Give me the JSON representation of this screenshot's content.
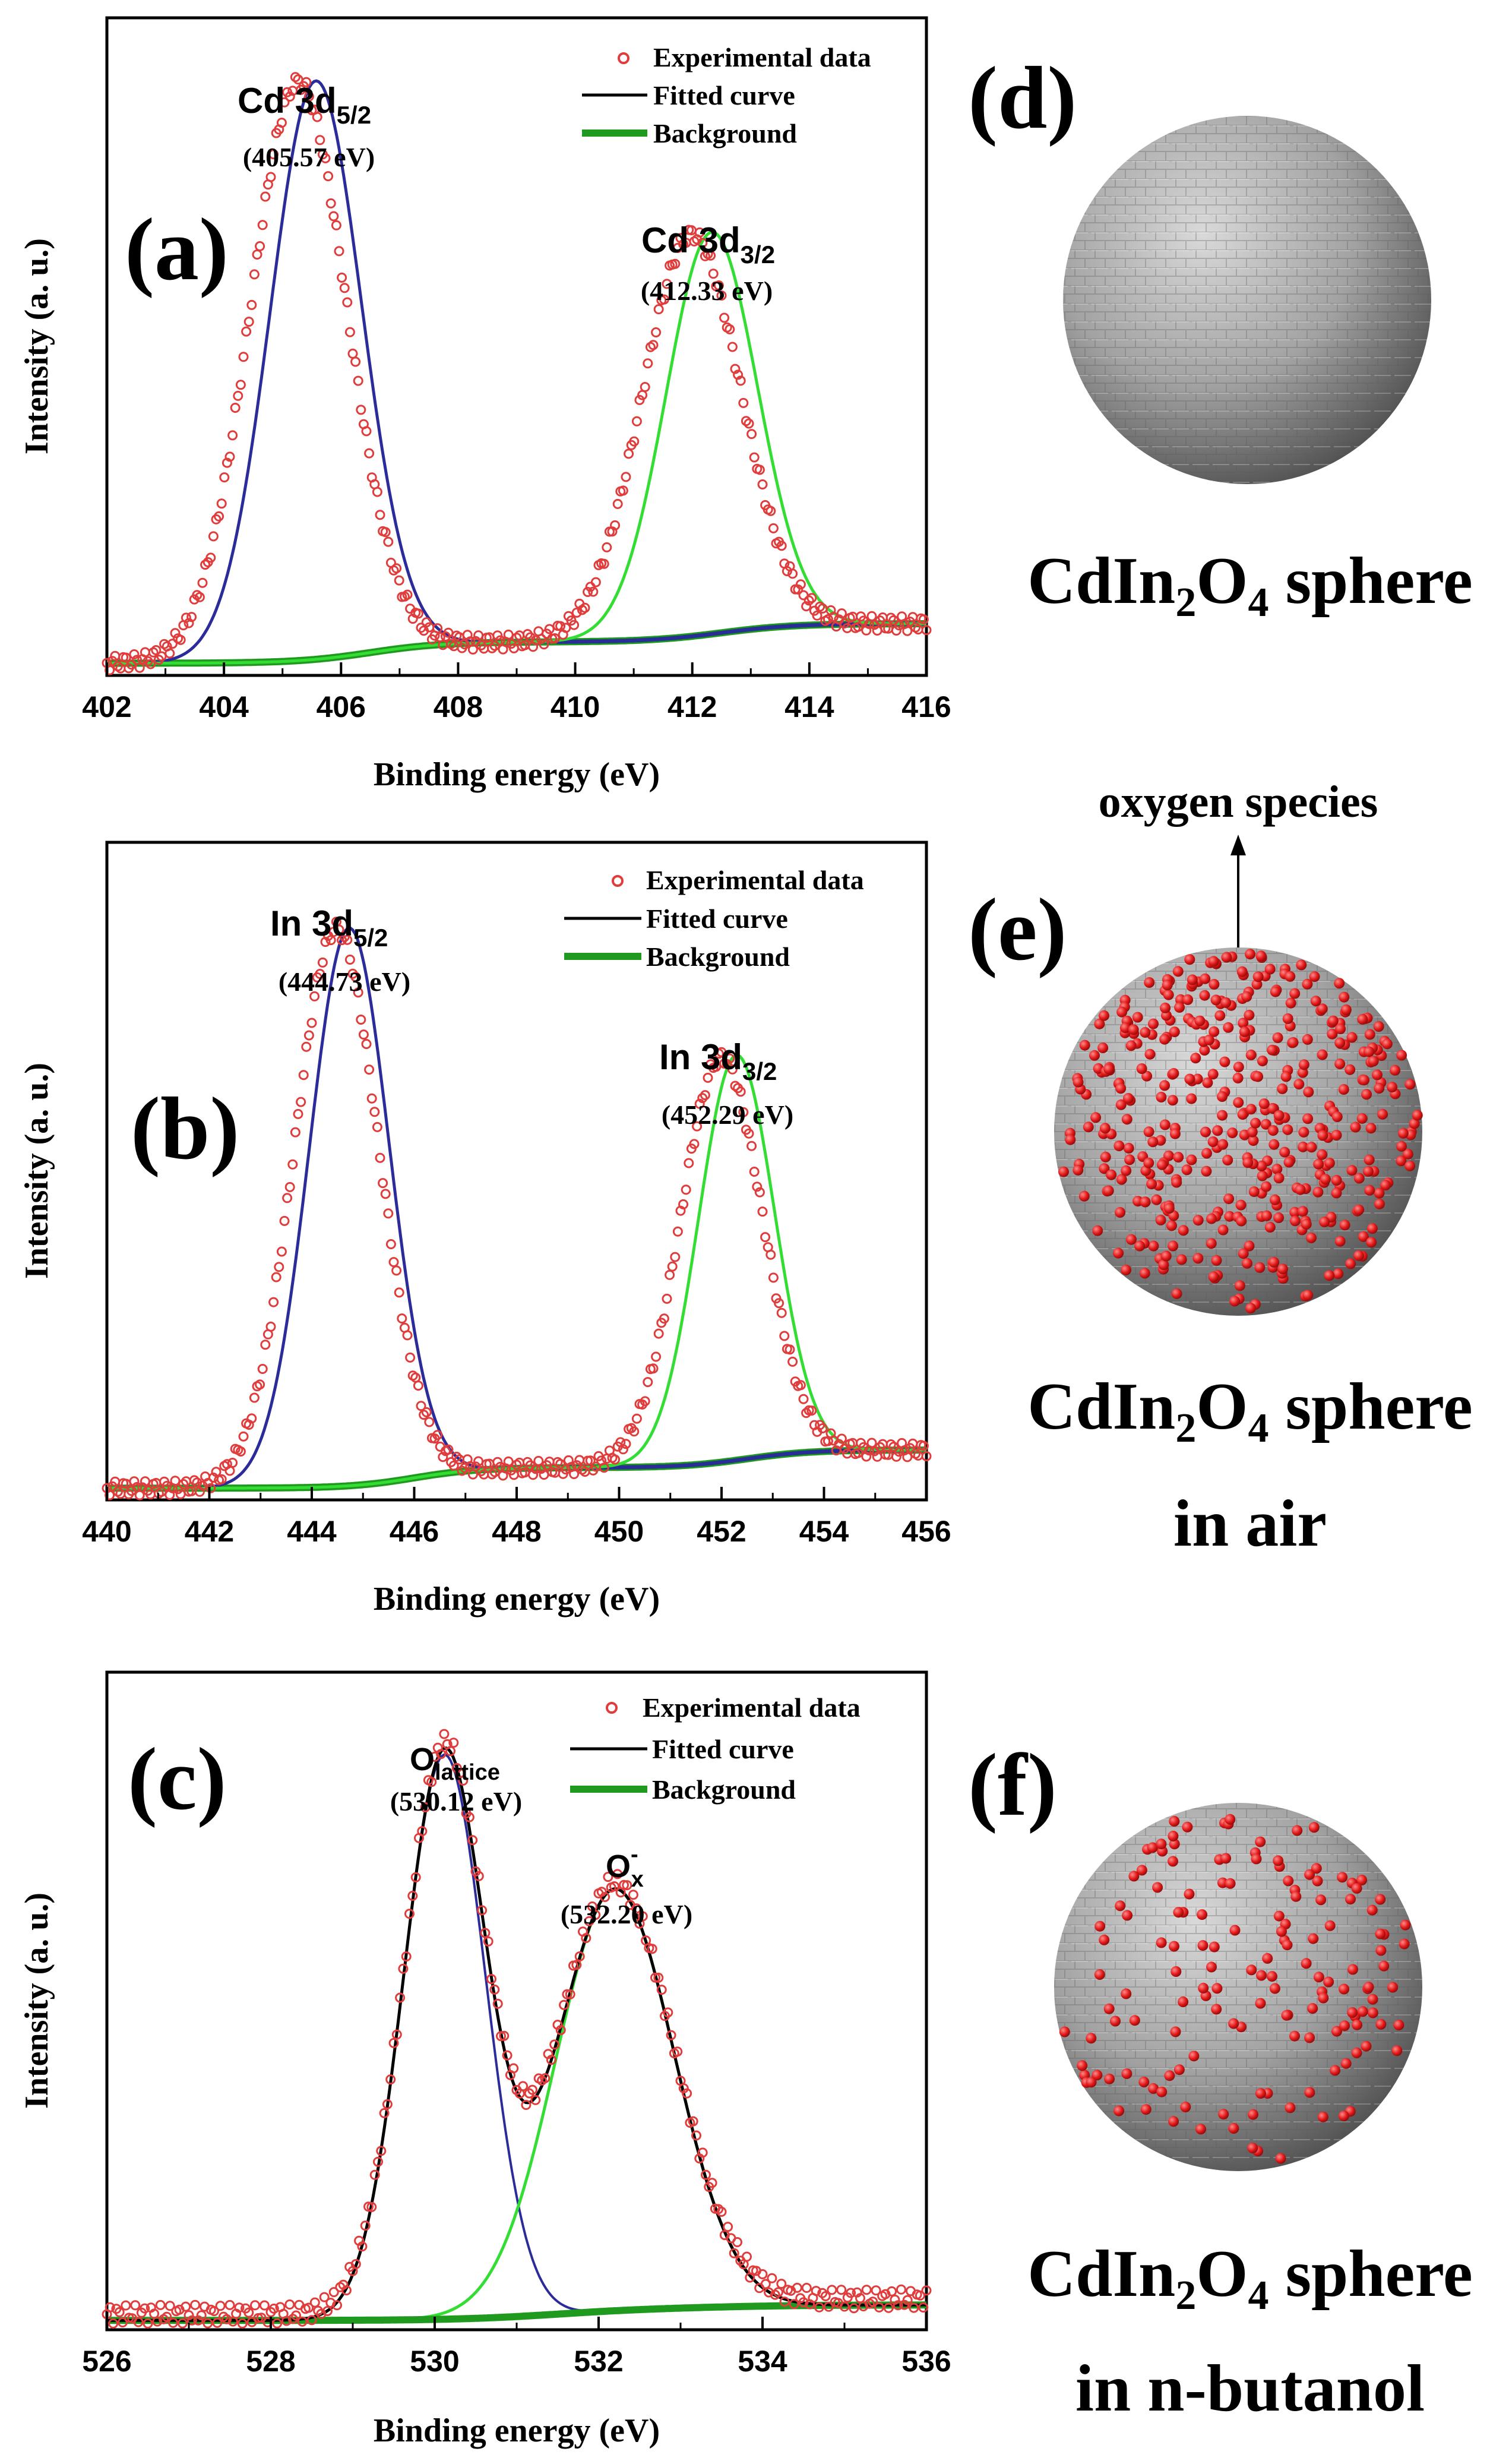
{
  "colors": {
    "experimental": "#e03c3c",
    "fit_cd_in_5_2": "#2b2b9a",
    "fit_3_2": "#33dd33",
    "fitted_total": "#000000",
    "background_green": "#1f9a1f",
    "background_navy": "#1d3f7a",
    "sphere_base": "#9a9a9a",
    "oxygen_dot": "#e01818"
  },
  "chart_data": [
    {
      "type": "line",
      "panel_label": "(a)",
      "xlabel": "Binding energy (eV)",
      "ylabel": "Intensity (a. u.)",
      "xlim": [
        402,
        416
      ],
      "xticks": [
        "402",
        "404",
        "406",
        "408",
        "410",
        "412",
        "414",
        "416"
      ],
      "ylim": [
        0,
        1.08
      ],
      "legend": [
        "Experimental data",
        "Fitted curve",
        "Background"
      ],
      "peaks": [
        {
          "main": "Cd 3d",
          "sub": "5/2",
          "energy_label": "(405.57 eV)",
          "center": 405.57,
          "height": 0.95,
          "sigma": 0.78,
          "exp_shift": -0.3
        },
        {
          "main": "Cd 3d",
          "sub": "3/2",
          "energy_label": "(412.33 eV)",
          "center": 412.33,
          "height": 0.66,
          "sigma": 0.78,
          "exp_shift": -0.35
        }
      ],
      "background": {
        "start": 0.02,
        "step1_center": 406.5,
        "step1_height": 0.035,
        "step2_center": 412.5,
        "step2_height": 0.03
      }
    },
    {
      "type": "line",
      "panel_label": "(b)",
      "xlabel": "Binding energy (eV)",
      "ylabel": "Intensity (a. u.)",
      "xlim": [
        440,
        456
      ],
      "xticks": [
        "440",
        "442",
        "444",
        "446",
        "448",
        "450",
        "452",
        "454",
        "456"
      ],
      "ylim": [
        0,
        1.12
      ],
      "legend": [
        "Experimental data",
        "Fitted curve",
        "Background"
      ],
      "peaks": [
        {
          "main": "In 3d",
          "sub": "5/2",
          "energy_label": "(444.73 eV)",
          "center": 444.73,
          "height": 0.95,
          "sigma": 0.78,
          "exp_shift": -0.25
        },
        {
          "main": "In 3d",
          "sub": "3/2",
          "energy_label": "(452.29 eV)",
          "center": 452.29,
          "height": 0.69,
          "sigma": 0.74,
          "exp_shift": -0.3
        }
      ],
      "background": {
        "start": 0.02,
        "step1_center": 446,
        "step1_height": 0.035,
        "step2_center": 452.5,
        "step2_height": 0.03
      }
    },
    {
      "type": "line",
      "panel_label": "(c)",
      "xlabel": "Binding energy (eV)",
      "ylabel": "Intensity (a. u.)",
      "xlim": [
        526,
        536
      ],
      "xticks": [
        "526",
        "528",
        "530",
        "532",
        "534",
        "536"
      ],
      "ylim": [
        0,
        1.06
      ],
      "legend": [
        "Experimental data",
        "Fitted curve",
        "Background"
      ],
      "peaks": [
        {
          "main": "O",
          "sub": "lattice",
          "energy_label": "(530.12 eV)",
          "center": 530.12,
          "height": 0.91,
          "sigma": 0.5
        },
        {
          "main": "O",
          "sup": "-",
          "sub": "x",
          "energy_label": "(532.20 eV)",
          "center": 532.2,
          "height": 0.68,
          "sigma": 0.72
        }
      ],
      "background": {
        "start": 0.015,
        "step1_center": 531.5,
        "step1_height": 0.02,
        "step2_center": 533.5,
        "step2_height": 0.005
      }
    }
  ],
  "spheres": [
    {
      "panel_label": "(d)",
      "caption_lines": [
        "CdIn2O4 sphere"
      ],
      "dots": "none"
    },
    {
      "panel_label": "(e)",
      "caption_lines": [
        "CdIn2O4 sphere",
        "in air"
      ],
      "dots": "dense",
      "arrow_label": "oxygen species"
    },
    {
      "panel_label": "(f)",
      "caption_lines": [
        "CdIn2O4 sphere",
        "in n-butanol"
      ],
      "dots": "sparse"
    }
  ]
}
